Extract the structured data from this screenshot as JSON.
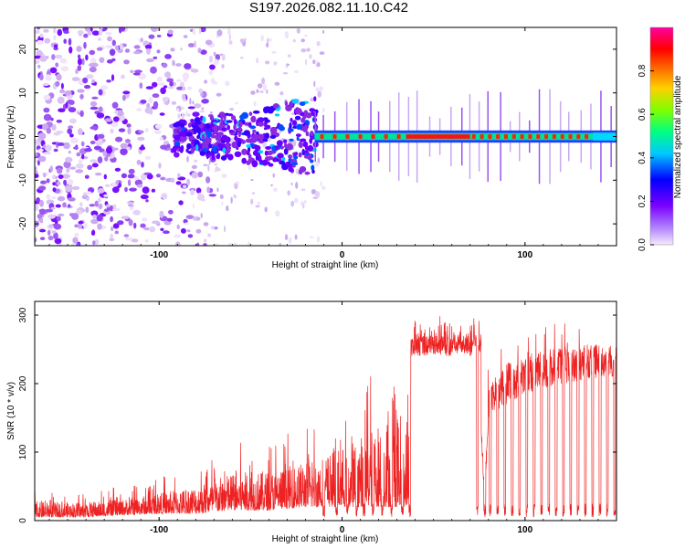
{
  "title": "S197.2026.082.11.10.C42",
  "chart_data": [
    {
      "type": "heatmap",
      "title": "S197.2026.082.11.10.C42",
      "xlabel": "Height of straight line (km)",
      "ylabel": "Frequency (Hz)",
      "xlim": [
        -168,
        150
      ],
      "ylim": [
        -25,
        25
      ],
      "xticks": [
        -100,
        0,
        100
      ],
      "yticks": [
        -20,
        -10,
        0,
        10,
        20
      ],
      "xtick_labels": [
        "-100",
        "0",
        "100"
      ],
      "ytick_labels": [
        "-20",
        "-10",
        "0",
        "10",
        "20"
      ],
      "colorbar": {
        "label": "Normalized spectral amplitude",
        "range": [
          0.0,
          1.0
        ],
        "ticks": [
          0.0,
          0.2,
          0.4,
          0.6,
          0.8
        ],
        "tick_labels": [
          "0.0",
          "0.2",
          "0.4",
          "0.6",
          "0.8"
        ],
        "colors": [
          "#f4ecfb",
          "#7a00ff",
          "#0000ff",
          "#00c8ff",
          "#00ff80",
          "#80ff00",
          "#ffd000",
          "#ff6000",
          "#ff0000",
          "#ff00a0"
        ]
      },
      "description_regions": [
        {
          "x_range": [
            -168,
            -90
          ],
          "level": "diffuse low amplitude noise"
        },
        {
          "x_range": [
            -90,
            -15
          ],
          "level": "broad blue/purple energy near 0 Hz"
        },
        {
          "x_range": [
            -15,
            35
          ],
          "level": "narrow green/red line at 0 Hz with gaps"
        },
        {
          "x_range": [
            35,
            70
          ],
          "level": "continuous red line at 0 Hz"
        },
        {
          "x_range": [
            70,
            150
          ],
          "level": "periodic red/green line segments with vertical purple streaks"
        }
      ]
    },
    {
      "type": "line",
      "xlabel": "Height of straight line (km)",
      "ylabel": "SNR (10 * v/v)",
      "xlim": [
        -168,
        150
      ],
      "ylim": [
        0,
        320
      ],
      "xticks": [
        -100,
        0,
        100
      ],
      "yticks": [
        0,
        100,
        200,
        300
      ],
      "xtick_labels": [
        "-100",
        "0",
        "100"
      ],
      "ytick_labels": [
        "0",
        "100",
        "200",
        "300"
      ],
      "series": [
        {
          "name": "SNR",
          "color": "#ee2222",
          "envelope_x": [
            -168,
            -140,
            -120,
            -100,
            -80,
            -60,
            -40,
            -20,
            0,
            10,
            20,
            30,
            37,
            40,
            60,
            74,
            78,
            80,
            90,
            100,
            120,
            140,
            150
          ],
          "envelope_low": [
            5,
            5,
            8,
            10,
            10,
            15,
            15,
            20,
            20,
            20,
            20,
            20,
            20,
            240,
            245,
            240,
            10,
            150,
            170,
            185,
            200,
            205,
            210
          ],
          "envelope_high": [
            45,
            45,
            50,
            65,
            85,
            115,
            120,
            140,
            180,
            210,
            250,
            270,
            280,
            290,
            300,
            290,
            80,
            230,
            270,
            280,
            290,
            295,
            285
          ],
          "dropouts_x": [
            -10,
            -3,
            3,
            8,
            12,
            17,
            22,
            27,
            33,
            37,
            74,
            78,
            81,
            85,
            89,
            93,
            97,
            101,
            105,
            109,
            113,
            117,
            121,
            125,
            129,
            133,
            137,
            141,
            145,
            149
          ]
        }
      ]
    }
  ]
}
